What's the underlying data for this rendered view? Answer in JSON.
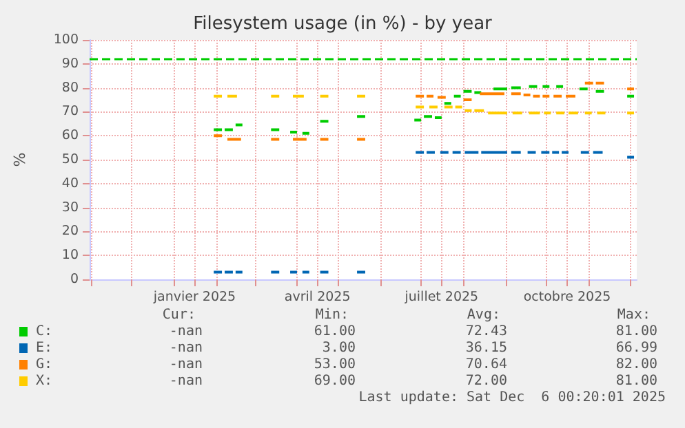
{
  "chart_data": {
    "type": "line",
    "title": "Filesystem usage (in %) - by year",
    "ylabel": "%",
    "xlim": [
      "2024-10-31",
      "2025-12-06"
    ],
    "ylim": [
      0,
      100
    ],
    "yticks": [
      0,
      10,
      20,
      30,
      40,
      50,
      60,
      70,
      80,
      90,
      100
    ],
    "xticks": [
      {
        "value": "2024-11-01",
        "label": null
      },
      {
        "value": "2024-12-01",
        "label": null
      },
      {
        "value": "2025-01-01",
        "label": null
      },
      {
        "value": "2025-01-16",
        "label": "janvier 2025"
      },
      {
        "value": "2025-02-01",
        "label": null
      },
      {
        "value": "2025-03-01",
        "label": null
      },
      {
        "value": "2025-04-01",
        "label": null
      },
      {
        "value": "2025-04-16",
        "label": "avril 2025"
      },
      {
        "value": "2025-05-01",
        "label": null
      },
      {
        "value": "2025-06-01",
        "label": null
      },
      {
        "value": "2025-07-01",
        "label": null
      },
      {
        "value": "2025-07-16",
        "label": "juillet 2025"
      },
      {
        "value": "2025-08-01",
        "label": null
      },
      {
        "value": "2025-09-01",
        "label": null
      },
      {
        "value": "2025-10-01",
        "label": null
      },
      {
        "value": "2025-10-16",
        "label": "octobre 2025"
      },
      {
        "value": "2025-11-01",
        "label": null
      },
      {
        "value": "2025-12-01",
        "label": null
      }
    ],
    "grid": true,
    "legend": "bottom left",
    "ref_lines": [
      {
        "axis": "y",
        "value": 92,
        "label": null,
        "color": "#00cc00",
        "line_style": "dashed"
      }
    ],
    "annotations": [
      "Cur:",
      "Min:",
      "Avg:",
      "Max:",
      "-nan",
      "61.00",
      "72.43",
      "81.00",
      "-nan",
      "3.00",
      "36.15",
      "66.99",
      "-nan",
      "53.00",
      "70.64",
      "82.00",
      "-nan",
      "69.00",
      "72.00",
      "81.00",
      "Last update: Sat Dec  6 00:20:01 2025"
    ],
    "series": [
      {
        "name": "C:",
        "color": "#00cc00",
        "x": [
          "2025-01-30",
          "2025-02-05",
          "2025-02-06",
          "2025-02-07",
          "2025-02-13",
          "2025-02-14",
          "2025-02-15",
          "2025-02-20",
          "2025-02-21",
          "2025-03-13",
          "2025-03-19",
          "2025-03-20",
          "2025-03-27",
          "2025-04-01",
          "2025-04-02",
          "2025-04-05",
          "2025-04-10",
          "2025-04-11",
          "2025-04-18",
          "2025-04-24",
          "2025-04-25",
          "2025-05-15",
          "2025-05-21",
          "2025-05-22",
          "2025-06-26",
          "2025-07-01",
          "2025-07-02",
          "2025-07-03",
          "2025-07-09",
          "2025-07-10",
          "2025-07-11",
          "2025-07-16",
          "2025-07-17",
          "2025-07-18",
          "2025-07-23",
          "2025-07-24",
          "2025-07-25",
          "2025-07-30",
          "2025-07-31",
          "2025-08-01",
          "2025-08-07",
          "2025-08-08",
          "2025-08-09",
          "2025-08-14",
          "2025-08-15",
          "2025-08-23",
          "2025-09-02",
          "2025-09-03",
          "2025-09-05",
          "2025-09-12",
          "2025-09-13",
          "2025-09-18",
          "2025-09-24",
          "2025-09-25",
          "2025-09-28",
          "2025-10-03",
          "2025-10-04",
          "2025-10-08",
          "2025-10-13",
          "2025-10-14",
          "2025-10-25",
          "2025-10-31",
          "2025-11-01",
          "2025-11-06",
          "2025-11-12",
          "2025-11-13",
          "2025-11-29",
          "2025-12-04"
        ],
        "values": [
          62.5,
          62.5,
          null,
          62.5,
          62.5,
          null,
          64.5,
          64.5,
          null,
          62.5,
          62.5,
          null,
          61.5,
          61.5,
          null,
          61,
          61,
          null,
          66,
          66,
          null,
          68,
          68,
          null,
          66.5,
          66.5,
          null,
          68,
          68,
          null,
          67.5,
          67.5,
          null,
          73.5,
          73.5,
          null,
          76.5,
          76.5,
          null,
          78.5,
          78.5,
          null,
          78,
          78,
          null,
          79.5,
          79.5,
          null,
          80,
          80,
          null,
          80.5,
          80.5,
          null,
          80.5,
          80.5,
          null,
          80.5,
          80.5,
          null,
          79.5,
          79.5,
          null,
          78.5,
          78.5,
          null,
          76.5,
          76.5
        ]
      },
      {
        "name": "E:",
        "color": "#0066b3",
        "x": [
          "2025-01-30",
          "2025-02-05",
          "2025-02-06",
          "2025-02-07",
          "2025-02-13",
          "2025-02-14",
          "2025-02-15",
          "2025-02-20",
          "2025-02-21",
          "2025-03-13",
          "2025-03-19",
          "2025-03-20",
          "2025-03-27",
          "2025-04-01",
          "2025-04-02",
          "2025-04-05",
          "2025-04-10",
          "2025-04-11",
          "2025-04-18",
          "2025-04-24",
          "2025-04-25",
          "2025-05-15",
          "2025-05-21",
          "2025-05-22",
          "2025-06-27",
          "2025-07-03",
          "2025-07-04",
          "2025-07-05",
          "2025-07-11",
          "2025-07-12",
          "2025-07-15",
          "2025-07-21",
          "2025-07-22",
          "2025-07-24",
          "2025-07-30",
          "2025-07-31",
          "2025-08-02",
          "2025-08-12",
          "2025-08-13",
          "2025-08-14",
          "2025-09-02",
          "2025-09-03",
          "2025-09-05",
          "2025-09-12",
          "2025-09-13",
          "2025-09-17",
          "2025-09-23",
          "2025-09-24",
          "2025-09-27",
          "2025-10-03",
          "2025-10-04",
          "2025-10-05",
          "2025-10-10",
          "2025-10-11",
          "2025-10-12",
          "2025-10-17",
          "2025-10-18",
          "2025-10-26",
          "2025-11-01",
          "2025-11-02",
          "2025-11-04",
          "2025-11-11",
          "2025-11-12",
          "2025-11-29",
          "2025-12-04"
        ],
        "values": [
          3,
          3,
          null,
          3,
          3,
          null,
          3,
          3,
          null,
          3,
          3,
          null,
          3,
          3,
          null,
          3,
          3,
          null,
          3,
          3,
          null,
          3,
          3,
          null,
          53,
          53,
          null,
          53,
          53,
          null,
          53,
          53,
          null,
          53,
          53,
          null,
          53,
          53,
          null,
          53,
          53,
          null,
          53,
          53,
          null,
          53,
          53,
          null,
          53,
          53,
          null,
          53,
          53,
          null,
          53,
          53,
          null,
          53,
          53,
          null,
          53,
          53,
          null,
          51,
          51
        ]
      },
      {
        "name": "G:",
        "color": "#ff8000",
        "x": [
          "2025-01-30",
          "2025-02-05",
          "2025-02-06",
          "2025-02-09",
          "2025-02-19",
          "2025-02-20",
          "2025-03-13",
          "2025-03-19",
          "2025-03-20",
          "2025-03-29",
          "2025-04-08",
          "2025-04-09",
          "2025-04-18",
          "2025-04-24",
          "2025-04-25",
          "2025-05-15",
          "2025-05-21",
          "2025-05-22",
          "2025-06-27",
          "2025-07-03",
          "2025-07-04",
          "2025-07-05",
          "2025-07-10",
          "2025-07-11",
          "2025-07-13",
          "2025-07-19",
          "2025-07-20",
          "2025-08-01",
          "2025-08-07",
          "2025-08-08",
          "2025-08-13",
          "2025-08-31",
          "2025-09-01",
          "2025-09-05",
          "2025-09-12",
          "2025-09-13",
          "2025-09-14",
          "2025-09-19",
          "2025-09-20",
          "2025-09-21",
          "2025-09-26",
          "2025-09-27",
          "2025-09-28",
          "2025-10-03",
          "2025-10-04",
          "2025-10-06",
          "2025-10-12",
          "2025-10-13",
          "2025-10-15",
          "2025-10-22",
          "2025-10-23",
          "2025-10-29",
          "2025-11-04",
          "2025-11-05",
          "2025-11-06",
          "2025-11-12",
          "2025-11-13",
          "2025-11-29",
          "2025-12-04"
        ],
        "values": [
          60,
          60,
          null,
          58.5,
          58.5,
          null,
          58.5,
          58.5,
          null,
          58.5,
          58.5,
          null,
          58.5,
          58.5,
          null,
          58.5,
          58.5,
          null,
          76.5,
          76.5,
          null,
          76.5,
          76.5,
          null,
          76,
          76,
          null,
          75,
          75,
          null,
          77.5,
          77.5,
          null,
          77.5,
          77.5,
          null,
          77,
          77,
          null,
          76.5,
          76.5,
          null,
          76.5,
          76.5,
          null,
          76.5,
          76.5,
          null,
          76.5,
          76.5,
          null,
          82,
          82,
          null,
          82,
          82,
          null,
          79.5,
          79.5
        ]
      },
      {
        "name": "X:",
        "color": "#ffcc00",
        "x": [
          "2025-01-30",
          "2025-02-05",
          "2025-02-06",
          "2025-02-09",
          "2025-02-16",
          "2025-02-17",
          "2025-03-13",
          "2025-03-19",
          "2025-03-20",
          "2025-03-29",
          "2025-04-06",
          "2025-04-07",
          "2025-04-18",
          "2025-04-24",
          "2025-04-25",
          "2025-05-15",
          "2025-05-21",
          "2025-05-22",
          "2025-06-27",
          "2025-07-03",
          "2025-07-04",
          "2025-07-07",
          "2025-07-13",
          "2025-07-14",
          "2025-07-18",
          "2025-07-24",
          "2025-07-25",
          "2025-07-26",
          "2025-07-31",
          "2025-08-01",
          "2025-08-02",
          "2025-08-07",
          "2025-08-08",
          "2025-08-09",
          "2025-08-16",
          "2025-08-17",
          "2025-08-19",
          "2025-09-02",
          "2025-09-03",
          "2025-09-06",
          "2025-09-13",
          "2025-09-14",
          "2025-09-18",
          "2025-09-26",
          "2025-09-27",
          "2025-09-29",
          "2025-10-04",
          "2025-10-05",
          "2025-10-08",
          "2025-10-14",
          "2025-10-15",
          "2025-10-17",
          "2025-10-24",
          "2025-10-25",
          "2025-10-29",
          "2025-11-03",
          "2025-11-04",
          "2025-11-07",
          "2025-11-13",
          "2025-11-14",
          "2025-11-29",
          "2025-12-04"
        ],
        "values": [
          76.5,
          76.5,
          null,
          76.5,
          76.5,
          null,
          76.5,
          76.5,
          null,
          76.5,
          76.5,
          null,
          76.5,
          76.5,
          null,
          76.5,
          76.5,
          null,
          72,
          72,
          null,
          72,
          72,
          null,
          72,
          72,
          null,
          72,
          72,
          null,
          70.5,
          70.5,
          null,
          70.5,
          70.5,
          null,
          69.5,
          69.5,
          null,
          69.5,
          69.5,
          null,
          69.5,
          69.5,
          null,
          69.5,
          69.5,
          null,
          69.5,
          69.5,
          null,
          69.5,
          69.5,
          null,
          69.5,
          69.5,
          null,
          69.5,
          69.5,
          null,
          69.5,
          69.5
        ]
      }
    ]
  }
}
